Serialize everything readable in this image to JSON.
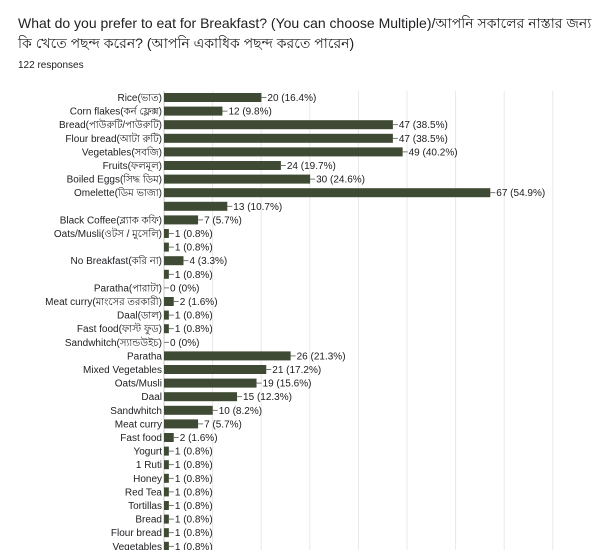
{
  "question": "What do you prefer to eat for Breakfast? (You can choose Multiple)/আপনি সকালের নাস্তার জন্য কি খেতে পছন্দ করেন? (আপনি একাধিক পছন্দ করতে পারেন)",
  "responses": "122 responses",
  "colors": {
    "bar": "#3e4a33",
    "grid": "#e8e8e8",
    "text": "#202124"
  },
  "chart_data": {
    "type": "bar",
    "orientation": "horizontal",
    "title": "",
    "xlabel": "",
    "ylabel": "",
    "grid": true,
    "total_responses": 122,
    "categories": [
      "Rice(ভাত)",
      "Corn flakes(কর্ন ফ্লেক্স)",
      "Bread(পাউরুটি/পাউরুটি)",
      "Flour bread(আটা রুটি)",
      "Vegetables(সবজি)",
      "Fruits(ফলমূল)",
      "Boiled Eggs(সিদ্ধ ডিম)",
      "Omelette(ডিম ভাজা)",
      "",
      "Black Coffee(ব্ল্যাক কফি)",
      "Oats/Musli(ওটস / মুসেলি)",
      "",
      "No Breakfast(করি না)",
      "",
      "Paratha(পারাটা)",
      "Meat curry(মাংসের তরকারী)",
      "Daal(ডাল)",
      "Fast food(ফাস্ট ফুড)",
      "Sandwhitch(স্যান্ডউইচ)",
      "Paratha",
      "Mixed Vegetables",
      "Oats/Musli",
      "Daal",
      "Sandwhitch",
      "Meat curry",
      "Fast food",
      "Yogurt",
      "1 Ruti",
      "Honey",
      "Red Tea",
      "Tortillas",
      "Bread",
      "Flour bread",
      "Vegetables"
    ],
    "values": [
      20,
      12,
      47,
      47,
      49,
      24,
      30,
      67,
      13,
      7,
      1,
      1,
      4,
      1,
      0,
      2,
      1,
      1,
      0,
      26,
      21,
      19,
      15,
      10,
      7,
      2,
      1,
      1,
      1,
      1,
      1,
      1,
      1,
      1
    ],
    "value_labels": [
      "20 (16.4%)",
      "12 (9.8%)",
      "47 (38.5%)",
      "47 (38.5%)",
      "49 (40.2%)",
      "24 (19.7%)",
      "30 (24.6%)",
      "67 (54.9%)",
      "13 (10.7%)",
      "7 (5.7%)",
      "1 (0.8%)",
      "1 (0.8%)",
      "4 (3.3%)",
      "1 (0.8%)",
      "0 (0%)",
      "2 (1.6%)",
      "1 (0.8%)",
      "1 (0.8%)",
      "0 (0%)",
      "26 (21.3%)",
      "21 (17.2%)",
      "19 (15.6%)",
      "15 (12.3%)",
      "10 (8.2%)",
      "7 (5.7%)",
      "2 (1.6%)",
      "1 (0.8%)",
      "1 (0.8%)",
      "1 (0.8%)",
      "1 (0.8%)",
      "1 (0.8%)",
      "1 (0.8%)",
      "1 (0.8%)",
      "1 (0.8%)"
    ]
  }
}
